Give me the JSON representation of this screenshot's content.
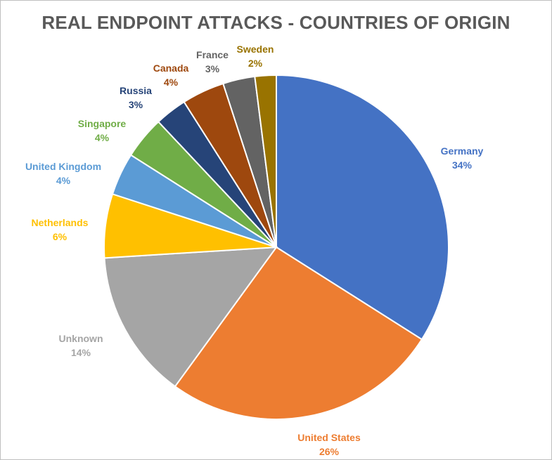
{
  "chart_data": {
    "type": "pie",
    "title": "REAL ENDPOINT ATTACKS - COUNTRIES OF ORIGIN",
    "slices": [
      {
        "label": "Germany",
        "value": 34,
        "display": "34%",
        "color": "#4472c4"
      },
      {
        "label": "United States",
        "value": 26,
        "display": "26%",
        "color": "#ed7d31"
      },
      {
        "label": "Unknown",
        "value": 14,
        "display": "14%",
        "color": "#a5a5a5"
      },
      {
        "label": "Netherlands",
        "value": 6,
        "display": "6%",
        "color": "#ffc000"
      },
      {
        "label": "United Kingdom",
        "value": 4,
        "display": "4%",
        "color": "#5b9bd5"
      },
      {
        "label": "Singapore",
        "value": 4,
        "display": "4%",
        "color": "#70ad47"
      },
      {
        "label": "Russia",
        "value": 3,
        "display": "3%",
        "color": "#264478"
      },
      {
        "label": "Canada",
        "value": 4,
        "display": "4%",
        "color": "#9e480e"
      },
      {
        "label": "France",
        "value": 3,
        "display": "3%",
        "color": "#636363"
      },
      {
        "label": "Sweden",
        "value": 2,
        "display": "2%",
        "color": "#997300"
      }
    ],
    "legend": "none",
    "data_labels": "outside"
  }
}
